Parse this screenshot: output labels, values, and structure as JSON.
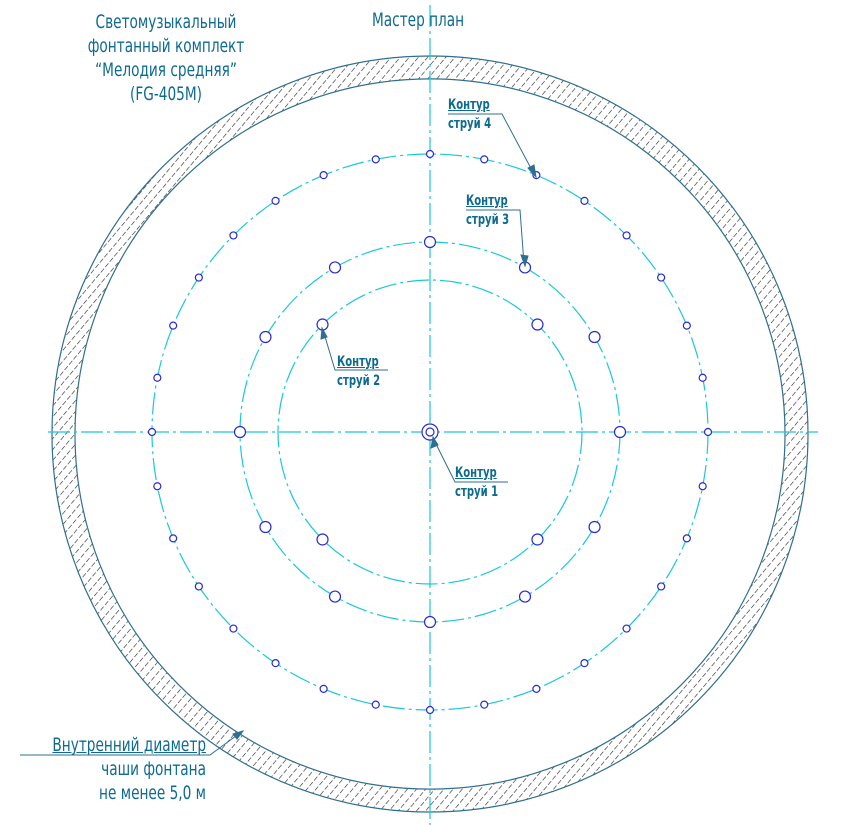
{
  "title": {
    "lines": [
      "Светомузыкальный",
      "фонтанный комплект",
      "“Мелодия средняя”",
      "(FG-405M)"
    ]
  },
  "plan_title": "Мастер план",
  "contours": [
    {
      "line1": "Контур",
      "line2": "струй 1",
      "nozzles": 1
    },
    {
      "line1": "Контур",
      "line2": "струй 2",
      "nozzles": 4
    },
    {
      "line1": "Контур",
      "line2": "струй 3",
      "nozzles": 12
    },
    {
      "line1": "Контур",
      "line2": "струй 4",
      "nozzles": 32
    }
  ],
  "bowl_note": {
    "line1": "Внутренний диаметр",
    "line2": "чаши фонтана",
    "line3": "не менее 5,0 м"
  },
  "colors": {
    "text": "#0d6a90",
    "axis": "#19c8d8",
    "nozzle": "#2a2ad0",
    "hatch": "#222222",
    "bowl": "#2f6f8f"
  }
}
